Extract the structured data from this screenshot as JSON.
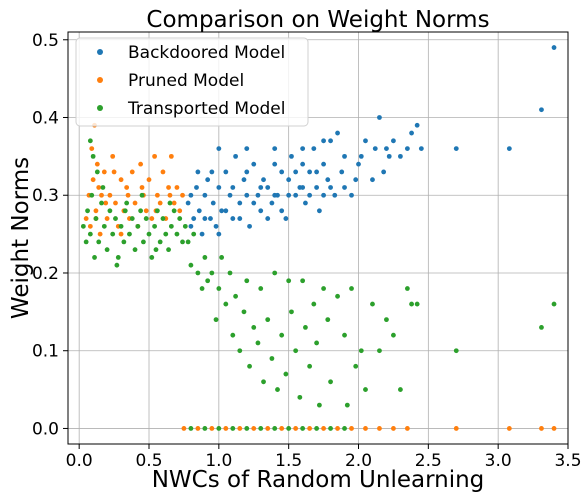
{
  "chart_data": {
    "type": "scatter",
    "title": "Comparison on Weight Norms",
    "xlabel": "NWCs of Random Unlearning",
    "ylabel": "Weight Norms",
    "xlim": [
      -0.08,
      3.5
    ],
    "ylim": [
      -0.02,
      0.51
    ],
    "xticks": [
      "0.0",
      "0.5",
      "1.0",
      "1.5",
      "2.0",
      "2.5",
      "3.0",
      "3.5"
    ],
    "xtick_values": [
      0,
      0.5,
      1.0,
      1.5,
      2.0,
      2.5,
      3.0,
      3.5
    ],
    "yticks": [
      "0.0",
      "0.1",
      "0.2",
      "0.3",
      "0.4",
      "0.5"
    ],
    "ytick_values": [
      0,
      0.1,
      0.2,
      0.3,
      0.4,
      0.5
    ],
    "grid": true,
    "legend_position": "top-left",
    "series": [
      {
        "name": "Backdoored Model",
        "color": "#1f77b4",
        "points": [
          [
            0.78,
            0.29
          ],
          [
            0.8,
            0.3
          ],
          [
            0.82,
            0.27
          ],
          [
            0.84,
            0.31
          ],
          [
            0.86,
            0.28
          ],
          [
            0.88,
            0.25
          ],
          [
            0.9,
            0.3
          ],
          [
            0.92,
            0.32
          ],
          [
            0.94,
            0.27
          ],
          [
            0.96,
            0.29
          ],
          [
            0.98,
            0.26
          ],
          [
            1.0,
            0.31
          ],
          [
            1.02,
            0.28
          ],
          [
            1.05,
            0.33
          ],
          [
            1.08,
            0.3
          ],
          [
            1.1,
            0.27
          ],
          [
            1.12,
            0.35
          ],
          [
            1.15,
            0.29
          ],
          [
            1.18,
            0.32
          ],
          [
            1.2,
            0.3
          ],
          [
            1.22,
            0.26
          ],
          [
            1.25,
            0.34
          ],
          [
            1.28,
            0.3
          ],
          [
            1.3,
            0.28
          ],
          [
            1.32,
            0.32
          ],
          [
            1.35,
            0.31
          ],
          [
            1.38,
            0.29
          ],
          [
            1.4,
            0.34
          ],
          [
            1.42,
            0.3
          ],
          [
            1.45,
            0.33
          ],
          [
            1.48,
            0.27
          ],
          [
            1.5,
            0.32
          ],
          [
            1.52,
            0.35
          ],
          [
            1.55,
            0.3
          ],
          [
            1.58,
            0.31
          ],
          [
            1.6,
            0.34
          ],
          [
            1.62,
            0.29
          ],
          [
            1.65,
            0.33
          ],
          [
            1.68,
            0.36
          ],
          [
            1.7,
            0.31
          ],
          [
            1.72,
            0.28
          ],
          [
            1.75,
            0.34
          ],
          [
            1.78,
            0.32
          ],
          [
            1.8,
            0.37
          ],
          [
            1.83,
            0.3
          ],
          [
            1.85,
            0.38
          ],
          [
            1.88,
            0.33
          ],
          [
            1.9,
            0.35
          ],
          [
            1.95,
            0.3
          ],
          [
            1.98,
            0.32
          ],
          [
            2.02,
            0.35
          ],
          [
            2.05,
            0.37
          ],
          [
            2.1,
            0.32
          ],
          [
            2.12,
            0.36
          ],
          [
            2.15,
            0.4
          ],
          [
            2.18,
            0.33
          ],
          [
            2.2,
            0.36
          ],
          [
            2.22,
            0.35
          ],
          [
            2.25,
            0.37
          ],
          [
            2.3,
            0.35
          ],
          [
            2.35,
            0.36
          ],
          [
            2.38,
            0.38
          ],
          [
            2.42,
            0.39
          ],
          [
            2.45,
            0.36
          ],
          [
            2.7,
            0.36
          ],
          [
            3.08,
            0.36
          ],
          [
            3.31,
            0.41
          ],
          [
            3.4,
            0.49
          ],
          [
            0.95,
            0.33
          ],
          [
            1.0,
            0.25
          ],
          [
            1.05,
            0.28
          ],
          [
            1.1,
            0.31
          ],
          [
            1.15,
            0.27
          ],
          [
            1.2,
            0.33
          ],
          [
            1.25,
            0.29
          ],
          [
            1.3,
            0.31
          ],
          [
            1.35,
            0.27
          ],
          [
            1.4,
            0.3
          ],
          [
            1.45,
            0.28
          ],
          [
            1.5,
            0.3
          ],
          [
            1.55,
            0.33
          ],
          [
            1.6,
            0.31
          ],
          [
            1.65,
            0.3
          ],
          [
            1.7,
            0.33
          ],
          [
            1.75,
            0.3
          ],
          [
            1.8,
            0.31
          ],
          [
            0.85,
            0.33
          ],
          [
            0.9,
            0.27
          ],
          [
            0.8,
            0.26
          ],
          [
            1.0,
            0.36
          ],
          [
            1.2,
            0.36
          ],
          [
            1.4,
            0.36
          ],
          [
            1.6,
            0.36
          ],
          [
            1.75,
            0.37
          ],
          [
            1.9,
            0.31
          ],
          [
            2.0,
            0.34
          ]
        ]
      },
      {
        "name": "Pruned Model",
        "color": "#ff7f0e",
        "points": [
          [
            0.05,
            0.27
          ],
          [
            0.07,
            0.3
          ],
          [
            0.08,
            0.26
          ],
          [
            0.1,
            0.32
          ],
          [
            0.11,
            0.39
          ],
          [
            0.12,
            0.28
          ],
          [
            0.13,
            0.34
          ],
          [
            0.15,
            0.25
          ],
          [
            0.16,
            0.3
          ],
          [
            0.18,
            0.33
          ],
          [
            0.2,
            0.27
          ],
          [
            0.22,
            0.3
          ],
          [
            0.24,
            0.35
          ],
          [
            0.26,
            0.29
          ],
          [
            0.28,
            0.26
          ],
          [
            0.3,
            0.32
          ],
          [
            0.32,
            0.28
          ],
          [
            0.34,
            0.31
          ],
          [
            0.36,
            0.27
          ],
          [
            0.38,
            0.33
          ],
          [
            0.4,
            0.29
          ],
          [
            0.42,
            0.26
          ],
          [
            0.44,
            0.34
          ],
          [
            0.46,
            0.3
          ],
          [
            0.48,
            0.28
          ],
          [
            0.5,
            0.32
          ],
          [
            0.52,
            0.27
          ],
          [
            0.54,
            0.35
          ],
          [
            0.56,
            0.3
          ],
          [
            0.58,
            0.29
          ],
          [
            0.6,
            0.33
          ],
          [
            0.62,
            0.27
          ],
          [
            0.64,
            0.31
          ],
          [
            0.66,
            0.35
          ],
          [
            0.68,
            0.29
          ],
          [
            0.7,
            0.31
          ],
          [
            0.72,
            0.28
          ],
          [
            0.74,
            0.3
          ],
          [
            0.09,
            0.36
          ],
          [
            0.14,
            0.31
          ],
          [
            0.19,
            0.29
          ],
          [
            0.25,
            0.33
          ],
          [
            0.35,
            0.3
          ],
          [
            0.45,
            0.31
          ],
          [
            0.55,
            0.28
          ],
          [
            0.65,
            0.3
          ],
          [
            0.12,
            0.27
          ],
          [
            0.3,
            0.25
          ],
          [
            0.75,
            0.0
          ],
          [
            0.85,
            0.0
          ],
          [
            0.95,
            0.0
          ],
          [
            1.05,
            0.0
          ],
          [
            1.15,
            0.0
          ],
          [
            1.25,
            0.0
          ],
          [
            1.35,
            0.0
          ],
          [
            1.45,
            0.0
          ],
          [
            1.55,
            0.0
          ],
          [
            1.65,
            0.0
          ],
          [
            1.75,
            0.0
          ],
          [
            1.85,
            0.0
          ],
          [
            1.95,
            0.0
          ],
          [
            2.05,
            0.0
          ],
          [
            2.15,
            0.0
          ],
          [
            2.25,
            0.0
          ],
          [
            2.35,
            0.0
          ],
          [
            2.7,
            0.0
          ],
          [
            3.08,
            0.0
          ],
          [
            3.31,
            0.0
          ],
          [
            3.4,
            0.0
          ]
        ]
      },
      {
        "name": "Transported Model",
        "color": "#2ca02c",
        "points": [
          [
            0.03,
            0.26
          ],
          [
            0.05,
            0.24
          ],
          [
            0.06,
            0.28
          ],
          [
            0.08,
            0.25
          ],
          [
            0.09,
            0.3
          ],
          [
            0.1,
            0.35
          ],
          [
            0.11,
            0.22
          ],
          [
            0.12,
            0.27
          ],
          [
            0.14,
            0.24
          ],
          [
            0.16,
            0.29
          ],
          [
            0.18,
            0.26
          ],
          [
            0.2,
            0.23
          ],
          [
            0.22,
            0.28
          ],
          [
            0.24,
            0.25
          ],
          [
            0.26,
            0.27
          ],
          [
            0.28,
            0.22
          ],
          [
            0.3,
            0.26
          ],
          [
            0.32,
            0.24
          ],
          [
            0.34,
            0.29
          ],
          [
            0.36,
            0.25
          ],
          [
            0.38,
            0.27
          ],
          [
            0.4,
            0.23
          ],
          [
            0.42,
            0.26
          ],
          [
            0.44,
            0.28
          ],
          [
            0.46,
            0.24
          ],
          [
            0.48,
            0.27
          ],
          [
            0.5,
            0.25
          ],
          [
            0.52,
            0.22
          ],
          [
            0.54,
            0.26
          ],
          [
            0.56,
            0.28
          ],
          [
            0.58,
            0.24
          ],
          [
            0.6,
            0.27
          ],
          [
            0.62,
            0.25
          ],
          [
            0.64,
            0.23
          ],
          [
            0.66,
            0.26
          ],
          [
            0.68,
            0.28
          ],
          [
            0.7,
            0.25
          ],
          [
            0.72,
            0.27
          ],
          [
            0.74,
            0.24
          ],
          [
            0.08,
            0.37
          ],
          [
            0.13,
            0.33
          ],
          [
            0.17,
            0.31
          ],
          [
            0.27,
            0.21
          ],
          [
            0.33,
            0.28
          ],
          [
            0.45,
            0.3
          ],
          [
            0.55,
            0.23
          ],
          [
            0.65,
            0.29
          ],
          [
            0.76,
            0.26
          ],
          [
            0.78,
            0.24
          ],
          [
            0.8,
            0.21
          ],
          [
            0.82,
            0.25
          ],
          [
            0.85,
            0.2
          ],
          [
            0.88,
            0.18
          ],
          [
            0.9,
            0.22
          ],
          [
            0.92,
            0.19
          ],
          [
            0.95,
            0.2
          ],
          [
            0.98,
            0.14
          ],
          [
            1.0,
            0.18
          ],
          [
            1.02,
            0.22
          ],
          [
            1.05,
            0.16
          ],
          [
            1.08,
            0.2
          ],
          [
            1.1,
            0.12
          ],
          [
            1.12,
            0.17
          ],
          [
            1.15,
            0.1
          ],
          [
            1.18,
            0.15
          ],
          [
            1.2,
            0.19
          ],
          [
            1.22,
            0.08
          ],
          [
            1.25,
            0.13
          ],
          [
            1.28,
            0.11
          ],
          [
            1.3,
            0.18
          ],
          [
            1.32,
            0.06
          ],
          [
            1.35,
            0.14
          ],
          [
            1.38,
            0.09
          ],
          [
            1.4,
            0.2
          ],
          [
            1.42,
            0.05
          ],
          [
            1.45,
            0.12
          ],
          [
            1.48,
            0.07
          ],
          [
            1.5,
            0.19
          ],
          [
            1.52,
            0.15
          ],
          [
            1.55,
            0.1
          ],
          [
            1.58,
            0.04
          ],
          [
            1.6,
            0.19
          ],
          [
            1.62,
            0.13
          ],
          [
            1.65,
            0.08
          ],
          [
            1.68,
            0.16
          ],
          [
            1.7,
            0.11
          ],
          [
            1.72,
            0.03
          ],
          [
            1.75,
            0.18
          ],
          [
            1.78,
            0.14
          ],
          [
            1.8,
            0.06
          ],
          [
            1.85,
            0.17
          ],
          [
            1.9,
            0.12
          ],
          [
            1.92,
            0.03
          ],
          [
            1.95,
            0.18
          ],
          [
            1.98,
            0.08
          ],
          [
            2.02,
            0.1
          ],
          [
            2.05,
            0.05
          ],
          [
            2.1,
            0.16
          ],
          [
            2.15,
            0.1
          ],
          [
            2.2,
            0.14
          ],
          [
            2.25,
            0.12
          ],
          [
            2.3,
            0.05
          ],
          [
            2.35,
            0.18
          ],
          [
            2.38,
            0.16
          ],
          [
            2.42,
            0.16
          ],
          [
            2.7,
            0.1
          ],
          [
            3.31,
            0.13
          ],
          [
            3.4,
            0.16
          ],
          [
            0.8,
            0.0
          ],
          [
            0.9,
            0.0
          ],
          [
            1.0,
            0.0
          ],
          [
            1.1,
            0.0
          ],
          [
            1.2,
            0.0
          ],
          [
            1.3,
            0.0
          ],
          [
            1.4,
            0.0
          ],
          [
            1.5,
            0.0
          ],
          [
            1.6,
            0.0
          ],
          [
            1.7,
            0.0
          ],
          [
            1.8,
            0.0
          ],
          [
            1.9,
            0.0
          ]
        ]
      }
    ]
  }
}
